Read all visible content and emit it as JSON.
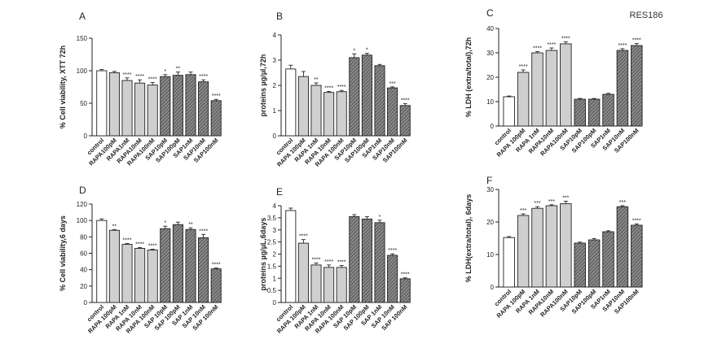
{
  "figure": {
    "cell_line_label": "RES186"
  },
  "chart_data": [
    {
      "panel_letter": "A",
      "type": "bar",
      "ylabel": "% Cell viability, XTT 72h",
      "ylim": [
        0,
        150
      ],
      "yticks": [
        0,
        50,
        100,
        150
      ],
      "categories": [
        "control",
        "RAPA100pM",
        "RAPA1nM",
        "RAPA10nM",
        "RAPA100nM",
        "SAP10pM",
        "SAP100pM",
        "SAP1nM",
        "SAP10nM",
        "SAP100nM"
      ],
      "values": [
        100,
        97,
        85,
        81,
        78,
        91,
        93,
        94,
        83,
        54
      ],
      "errors": [
        2,
        2,
        4,
        5,
        4,
        3,
        5,
        4,
        3,
        2
      ],
      "significance": [
        "",
        "",
        "****",
        "****",
        "****",
        "*",
        "**",
        "",
        "****",
        "****"
      ]
    },
    {
      "panel_letter": "B",
      "type": "bar",
      "ylabel": "proteins µg/µl,72h",
      "ylim": [
        0,
        4
      ],
      "yticks": [
        0,
        1,
        2,
        3,
        4
      ],
      "categories": [
        "control",
        "RAPA 100pM",
        "RAPA 1nM",
        "RAPA 10nM",
        "RAPA 100nM",
        "SAP10pM",
        "SAP100pM",
        "SAP1nM",
        "SAP10nM",
        "SAP100nM"
      ],
      "values": [
        2.65,
        2.35,
        2.0,
        1.72,
        1.75,
        3.1,
        3.2,
        2.78,
        1.9,
        1.2
      ],
      "errors": [
        0.15,
        0.2,
        0.1,
        0.04,
        0.05,
        0.15,
        0.07,
        0.05,
        0.04,
        0.08
      ],
      "significance": [
        "",
        "",
        "**",
        "****",
        "****",
        "*",
        "*",
        "",
        "***",
        "****"
      ]
    },
    {
      "panel_letter": "C",
      "type": "bar",
      "ylabel": "% LDH (extra/total),72h",
      "ylim": [
        0,
        40
      ],
      "yticks": [
        0,
        10,
        20,
        30,
        40
      ],
      "categories": [
        "control",
        "RAPA 100pM",
        "RAPA 1nM",
        "RAPA10nM",
        "RAPA100nM",
        "SAP10pM",
        "SAP100pM",
        "SAP1nM",
        "SAP10nM",
        "SAP100nM"
      ],
      "values": [
        12,
        22,
        30,
        31,
        33.7,
        11,
        11,
        13,
        31,
        33
      ],
      "errors": [
        0.3,
        1,
        0.5,
        1,
        0.8,
        0.3,
        0.3,
        0.4,
        0.7,
        0.8
      ],
      "significance": [
        "",
        "****",
        "****",
        "****",
        "****",
        "",
        "",
        "",
        "****",
        "****"
      ]
    },
    {
      "panel_letter": "D",
      "type": "bar",
      "ylabel": "% Cell viability,6 days",
      "ylim": [
        0,
        120
      ],
      "yticks": [
        0,
        20,
        40,
        60,
        80,
        100,
        120
      ],
      "categories": [
        "control",
        "RAPA 100pM",
        "RAPA 1nM",
        "RAPA 10nM",
        "RAPA 100nM",
        "SAP 10pM",
        "SAP 100pM",
        "SAP 1nM",
        "SAP 10nM",
        "SAP 100nM"
      ],
      "values": [
        100,
        88,
        71,
        66,
        64,
        90,
        95,
        89,
        79,
        41
      ],
      "errors": [
        2,
        1,
        1,
        1,
        1,
        3,
        3,
        2,
        4,
        1
      ],
      "significance": [
        "",
        "**",
        "****",
        "****",
        "****",
        "*",
        "",
        "**",
        "****",
        "****"
      ]
    },
    {
      "panel_letter": "E",
      "type": "bar",
      "ylabel": "proteins µg/µL,6days",
      "ylim": [
        0,
        4
      ],
      "yticks": [
        0,
        0.5,
        1,
        1.5,
        2,
        2.5,
        3,
        3.5,
        4
      ],
      "categories": [
        "control",
        "RAPA 100pM",
        "RAPA 1nM",
        "RAPA 10nM",
        "RAPA 100nM",
        "SAP 10pM",
        "SAP 100pM",
        "SAP 1nM",
        "SAP 10nM",
        "SAP 100nM"
      ],
      "values": [
        3.8,
        2.45,
        1.55,
        1.45,
        1.45,
        3.55,
        3.45,
        3.3,
        1.95,
        0.98
      ],
      "errors": [
        0.1,
        0.15,
        0.08,
        0.1,
        0.08,
        0.08,
        0.1,
        0.1,
        0.06,
        0.04
      ],
      "significance": [
        "",
        "****",
        "****",
        "****",
        "****",
        "",
        "",
        "*",
        "****",
        "****"
      ]
    },
    {
      "panel_letter": "F",
      "type": "bar",
      "ylabel": "% LDH(extra/total), 6days",
      "ylim": [
        0,
        30
      ],
      "yticks": [
        0,
        10,
        20,
        30
      ],
      "categories": [
        "control",
        "RAPA 100pM",
        "RAPA 1nM",
        "RAPA10nM",
        "RAPA100nM",
        "SAP10pM",
        "SAP100pM",
        "SAP1nM",
        "SAP10nM",
        "SAP100nM"
      ],
      "values": [
        15.2,
        22,
        24.2,
        25,
        25.6,
        13.5,
        14.5,
        17,
        24.7,
        19
      ],
      "errors": [
        0.3,
        0.5,
        0.5,
        0.3,
        0.8,
        0.3,
        0.4,
        0.3,
        0.3,
        0.4
      ],
      "significance": [
        "",
        "***",
        "***",
        "***",
        "***",
        "",
        "",
        "",
        "***",
        "****"
      ]
    }
  ]
}
